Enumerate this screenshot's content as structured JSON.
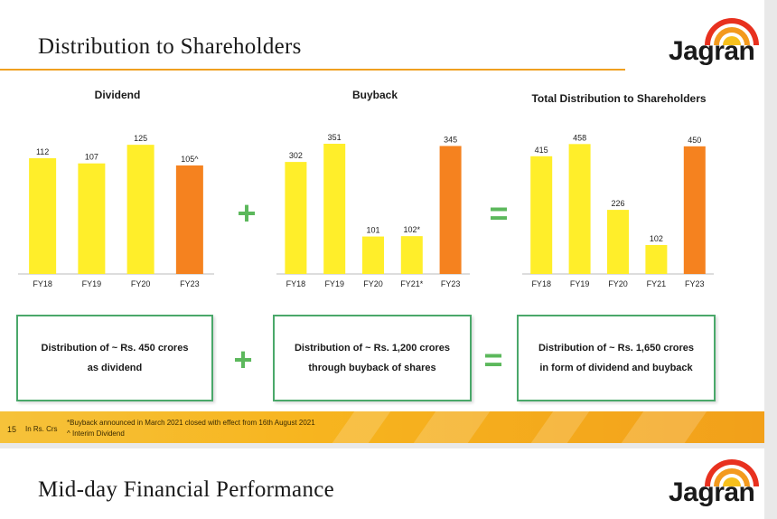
{
  "slide1": {
    "title": "Distribution to Shareholders",
    "logo_text": "Jagran",
    "operators": {
      "plus": "+",
      "equals": "="
    },
    "boxes": [
      "Distribution of ~ Rs. 450 crores as dividend",
      "Distribution of ~ Rs. 1,200 crores through buyback of shares",
      "Distribution of ~ Rs. 1,650 crores in form of dividend and buyback"
    ],
    "footer": {
      "page_number": "15",
      "unit_note": "In Rs. Crs",
      "note_line1": "*Buyback announced in March 2021 closed with effect from 16th August 2021",
      "note_line2": "^ Interim Dividend"
    },
    "colors": {
      "yellow": "#FFEE2A",
      "orange": "#F5821F",
      "rule": "#F0A020",
      "box_border": "#4AA86A"
    }
  },
  "slide2": {
    "title": "Mid-day Financial Performance",
    "logo_text": "Jagran"
  },
  "chart_data": [
    {
      "type": "bar",
      "title": "Dividend",
      "categories": [
        "FY18",
        "FY19",
        "FY20",
        "FY23"
      ],
      "values": [
        112,
        107,
        125,
        105
      ],
      "labels": [
        "112",
        "107",
        "125",
        "105^"
      ],
      "highlight": [
        false,
        false,
        false,
        true
      ],
      "ylim": [
        0,
        140
      ]
    },
    {
      "type": "bar",
      "title": "Buyback",
      "categories": [
        "FY18",
        "FY19",
        "FY20",
        "FY21*",
        "FY23"
      ],
      "values": [
        302,
        351,
        101,
        102,
        345
      ],
      "labels": [
        "302",
        "351",
        "101",
        "102*",
        "345"
      ],
      "highlight": [
        false,
        false,
        false,
        false,
        true
      ],
      "ylim": [
        0,
        390
      ]
    },
    {
      "type": "bar",
      "title": "Total Distribution to Shareholders",
      "categories": [
        "FY18",
        "FY19",
        "FY20",
        "FY21",
        "FY23"
      ],
      "values": [
        415,
        458,
        226,
        102,
        450
      ],
      "labels": [
        "415",
        "458",
        "226",
        "102",
        "450"
      ],
      "highlight": [
        false,
        false,
        false,
        false,
        true
      ],
      "ylim": [
        0,
        510
      ]
    }
  ]
}
